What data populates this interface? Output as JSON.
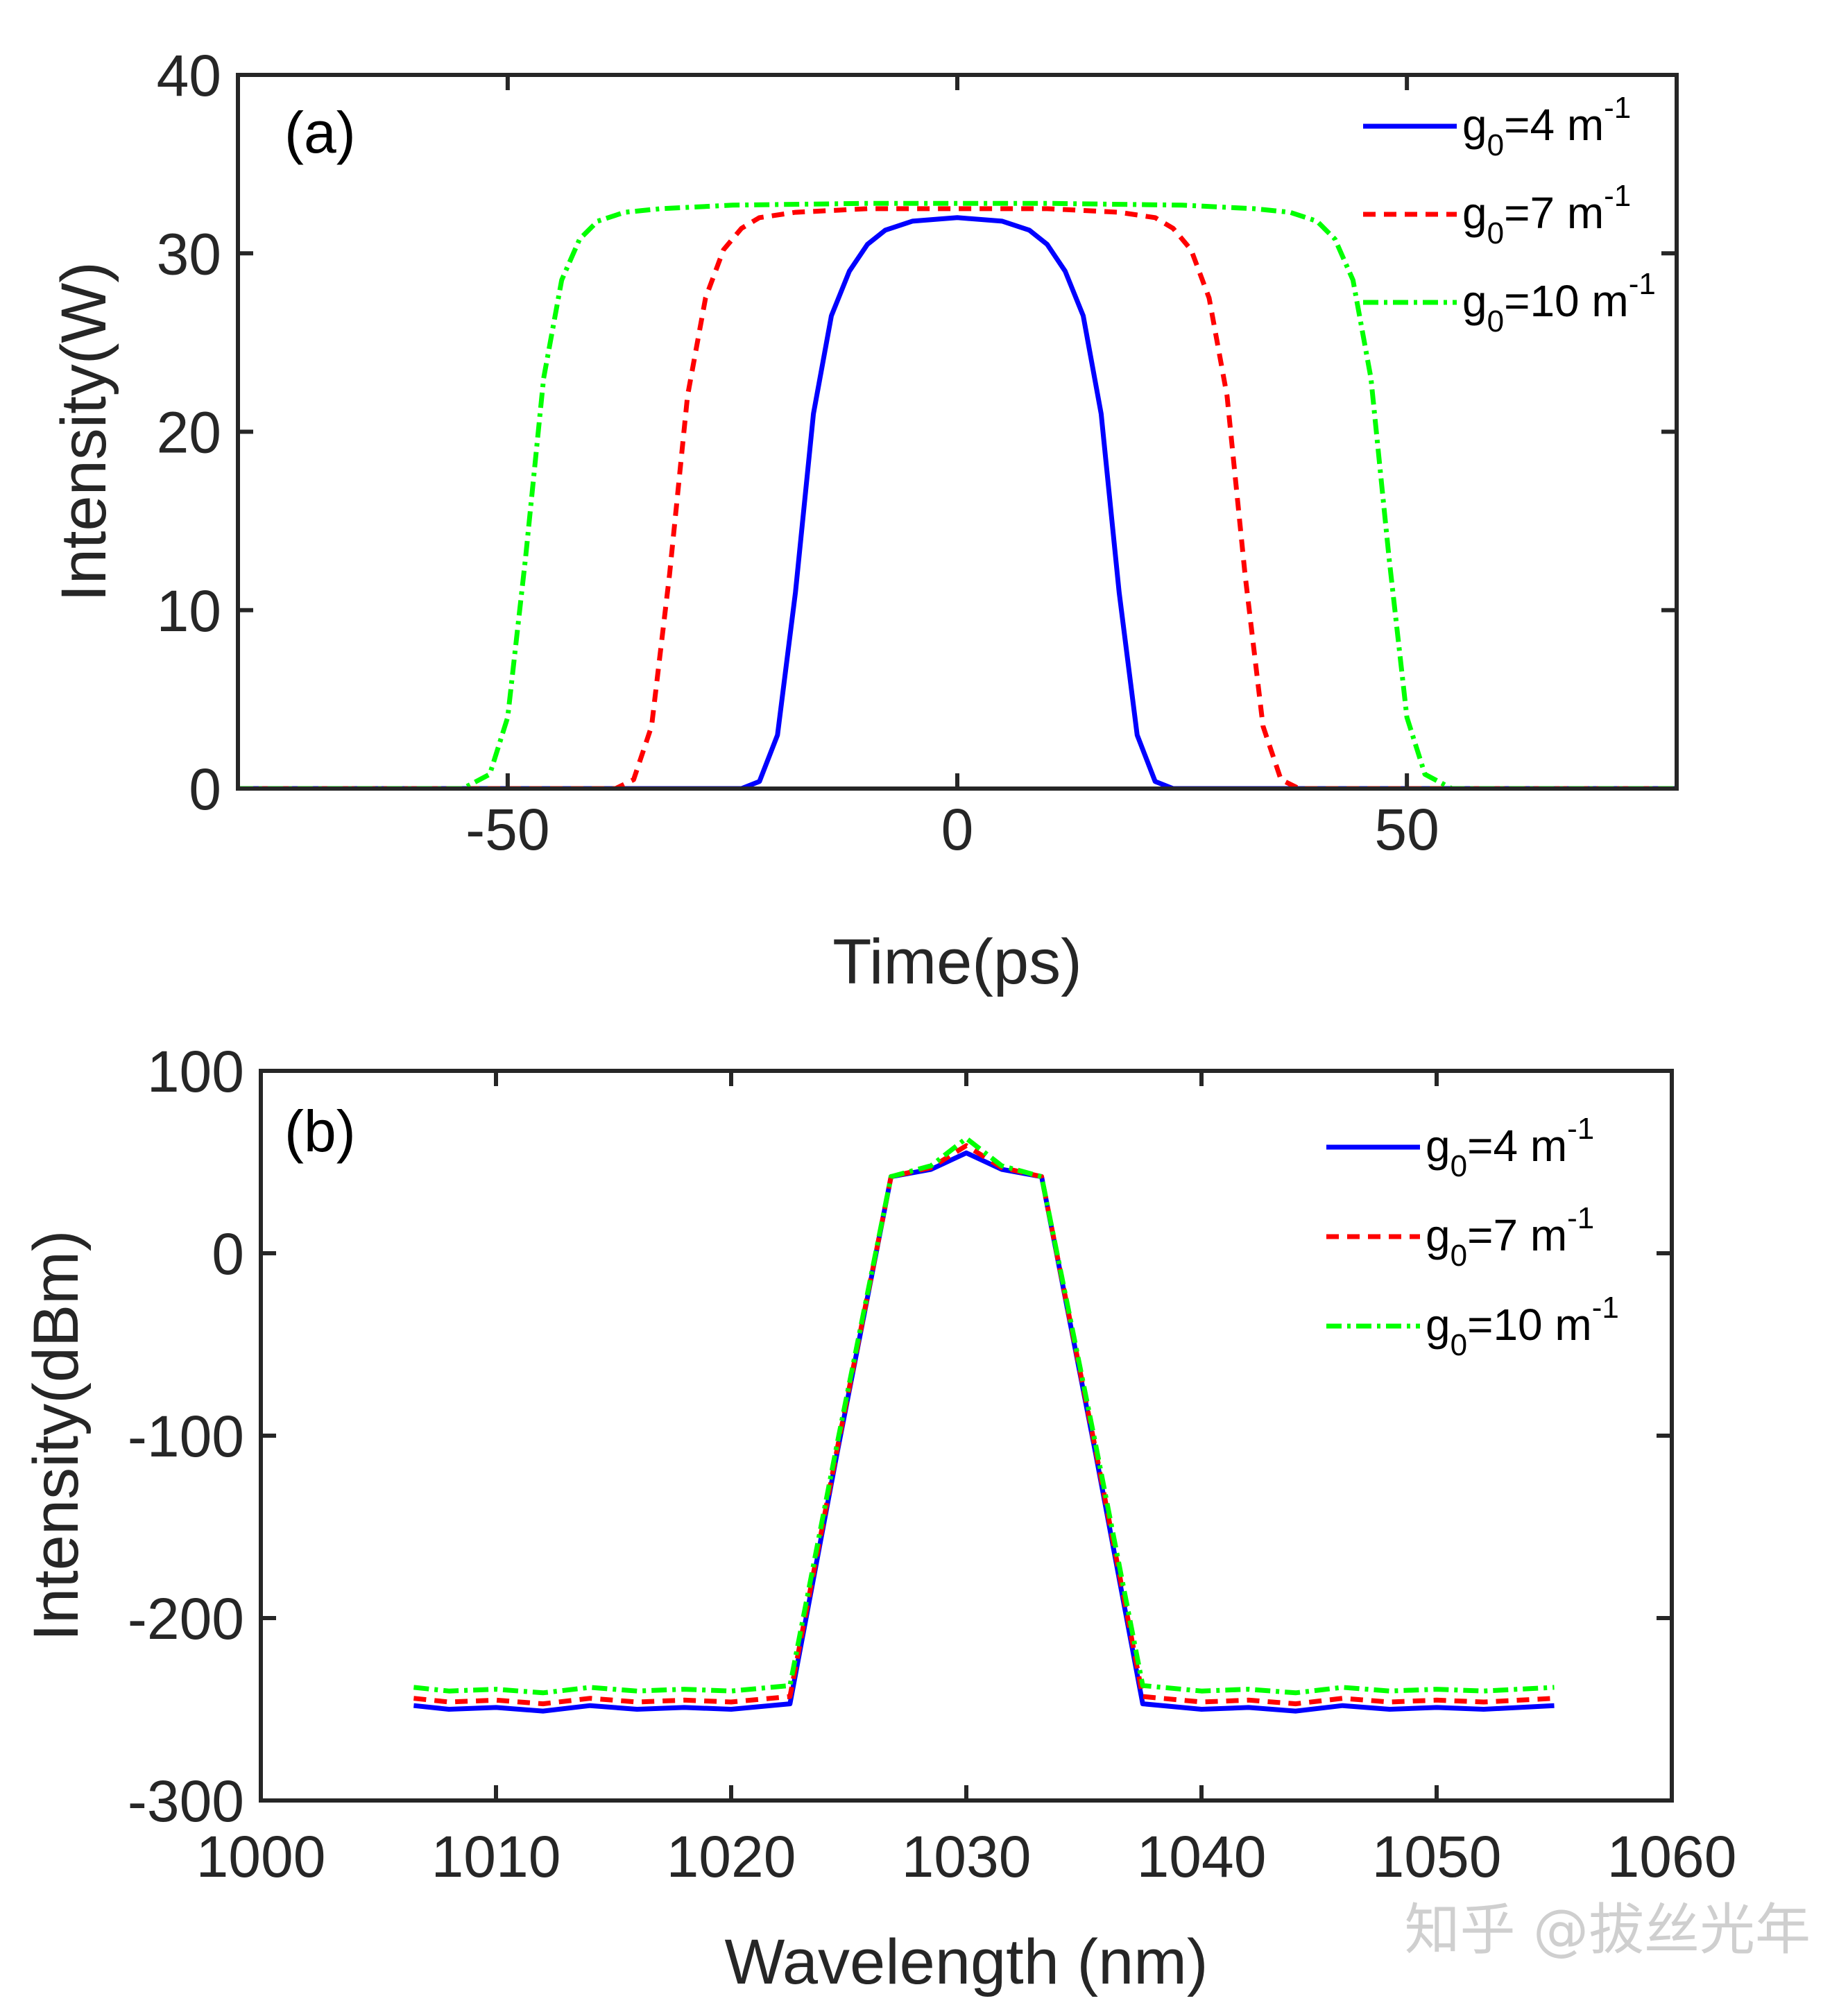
{
  "watermark": "知乎 @拔丝光年",
  "chart_data": [
    {
      "type": "line",
      "panel_label": "(a)",
      "xlabel": "Time(ps)",
      "ylabel": "Intensity(W)",
      "xlim": [
        -80,
        80
      ],
      "ylim": [
        0,
        40
      ],
      "xticks": [
        -50,
        0,
        50
      ],
      "yticks": [
        0,
        10,
        20,
        30,
        40
      ],
      "grid": false,
      "legend_position": "top-right",
      "series": [
        {
          "name": "g0=4 m-1",
          "legend": {
            "base": "g",
            "sub": "0",
            "mid": "=4 m",
            "sup": "-1"
          },
          "color": "#0000ff",
          "dash": "solid",
          "x": [
            -80,
            -24,
            -22,
            -20,
            -18,
            -16,
            -14,
            -12,
            -10,
            -8,
            -5,
            0,
            5,
            8,
            10,
            12,
            14,
            16,
            18,
            20,
            22,
            24,
            80
          ],
          "y": [
            0,
            0,
            0.4,
            3,
            11,
            21,
            26.5,
            29,
            30.5,
            31.3,
            31.8,
            32,
            31.8,
            31.3,
            30.5,
            29,
            26.5,
            21,
            11,
            3,
            0.4,
            0,
            0
          ]
        },
        {
          "name": "g0=7 m-1",
          "legend": {
            "base": "g",
            "sub": "0",
            "mid": "=7 m",
            "sup": "-1"
          },
          "color": "#ff0000",
          "dash": "18,12",
          "x": [
            -80,
            -38,
            -36,
            -34,
            -32,
            -30,
            -28,
            -26,
            -24,
            -22,
            -18,
            -10,
            0,
            10,
            18,
            22,
            24,
            26,
            28,
            30,
            32,
            34,
            36,
            38,
            80
          ],
          "y": [
            0,
            0,
            0.5,
            3.5,
            12,
            22,
            27.5,
            30.2,
            31.4,
            32,
            32.3,
            32.5,
            32.5,
            32.5,
            32.3,
            32,
            31.4,
            30.2,
            27.5,
            22,
            12,
            3.5,
            0.5,
            0,
            0
          ]
        },
        {
          "name": "g0=10 m-1",
          "legend": {
            "base": "g",
            "sub": "0",
            "mid": "=10 m",
            "sup": "-1"
          },
          "color": "#00ff00",
          "dash": "22,8,5,8",
          "x": [
            -80,
            -55,
            -52,
            -50,
            -48,
            -46,
            -44,
            -42,
            -40,
            -37,
            -33,
            -25,
            -10,
            0,
            10,
            25,
            33,
            37,
            40,
            42,
            44,
            46,
            48,
            50,
            52,
            55,
            80
          ],
          "y": [
            0,
            0,
            0.8,
            4,
            13,
            23,
            28.5,
            30.8,
            31.8,
            32.3,
            32.5,
            32.7,
            32.8,
            32.8,
            32.8,
            32.7,
            32.5,
            32.3,
            31.8,
            30.8,
            28.5,
            23,
            13,
            4,
            0.8,
            0,
            0
          ]
        }
      ]
    },
    {
      "type": "line",
      "panel_label": "(b)",
      "xlabel": "Wavelength (nm)",
      "ylabel": "Intensity(dBm)",
      "xlim": [
        1000,
        1060
      ],
      "ylim": [
        -300,
        100
      ],
      "xticks": [
        1000,
        1010,
        1020,
        1030,
        1040,
        1050,
        1060
      ],
      "yticks": [
        -300,
        -200,
        -100,
        0,
        100
      ],
      "grid": false,
      "legend_position": "top-right",
      "series": [
        {
          "name": "g0=4 m-1",
          "legend": {
            "base": "g",
            "sub": "0",
            "mid": "=4 m",
            "sup": "-1"
          },
          "color": "#0000ff",
          "dash": "solid",
          "x": [
            1006.5,
            1008,
            1010,
            1012,
            1014,
            1016,
            1018,
            1020,
            1022.5,
            1024.5,
            1026.8,
            1028.5,
            1030,
            1031.5,
            1033.2,
            1035.5,
            1037.5,
            1040,
            1042,
            1044,
            1046,
            1048,
            1050,
            1052,
            1055
          ],
          "y": [
            -248,
            -250,
            -249,
            -251,
            -248,
            -250,
            -249,
            -250,
            -247,
            -110,
            42,
            46,
            55,
            46,
            42,
            -110,
            -247,
            -250,
            -249,
            -251,
            -248,
            -250,
            -249,
            -250,
            -248
          ]
        },
        {
          "name": "g0=7 m-1",
          "legend": {
            "base": "g",
            "sub": "0",
            "mid": "=7 m",
            "sup": "-1"
          },
          "color": "#ff0000",
          "dash": "18,12",
          "x": [
            1006.5,
            1008,
            1010,
            1012,
            1014,
            1016,
            1018,
            1020,
            1022.5,
            1024.5,
            1026.8,
            1028.5,
            1030,
            1031.5,
            1033.2,
            1035.5,
            1037.5,
            1040,
            1042,
            1044,
            1046,
            1048,
            1050,
            1052,
            1055
          ],
          "y": [
            -244,
            -246,
            -245,
            -247,
            -244,
            -246,
            -245,
            -246,
            -243,
            -108,
            42,
            47,
            59,
            47,
            42,
            -108,
            -243,
            -246,
            -245,
            -247,
            -244,
            -246,
            -245,
            -246,
            -244
          ]
        },
        {
          "name": "g0=10 m-1",
          "legend": {
            "base": "g",
            "sub": "0",
            "mid": "=10 m",
            "sup": "-1"
          },
          "color": "#00ff00",
          "dash": "22,8,5,8",
          "x": [
            1006.5,
            1008,
            1010,
            1012,
            1014,
            1016,
            1018,
            1020,
            1022.5,
            1024.5,
            1026.8,
            1028.5,
            1030,
            1031.5,
            1033.2,
            1035.5,
            1037.5,
            1040,
            1042,
            1044,
            1046,
            1048,
            1050,
            1052,
            1055
          ],
          "y": [
            -238,
            -240,
            -239,
            -241,
            -238,
            -240,
            -239,
            -240,
            -237,
            -105,
            42,
            48,
            63,
            48,
            42,
            -105,
            -237,
            -240,
            -239,
            -241,
            -238,
            -240,
            -239,
            -240,
            -238
          ]
        }
      ]
    }
  ]
}
